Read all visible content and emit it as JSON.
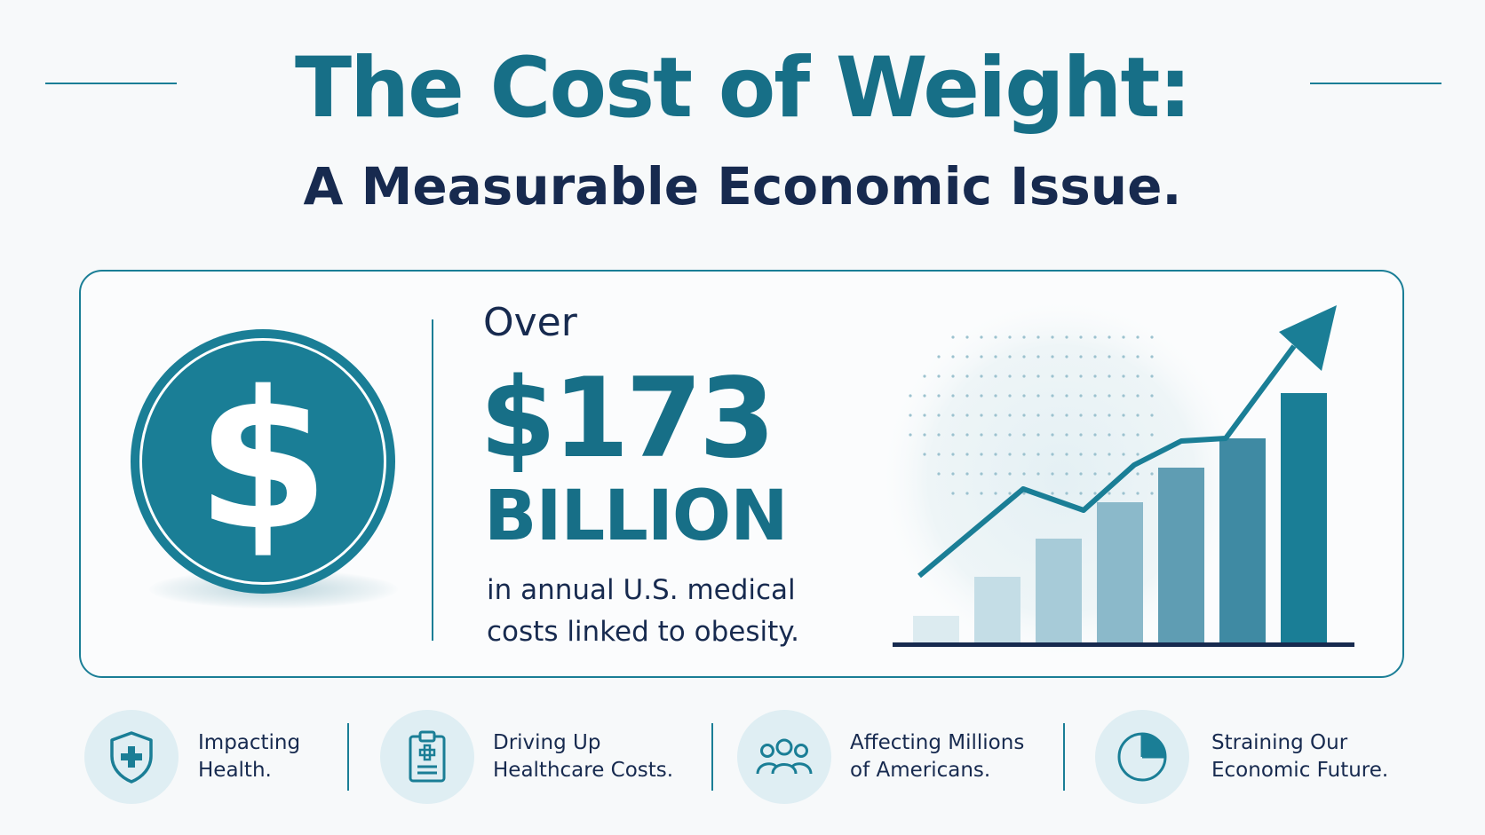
{
  "header": {
    "title": "The Cost of Weight:",
    "subtitle": "A Measurable Economic Issue."
  },
  "stat": {
    "prefix": "Over",
    "amount": "$173",
    "unit": "BILLION",
    "description": "in annual U.S. medical costs linked to obesity."
  },
  "icons": {
    "coin": "dollar-coin-icon",
    "chart": "rising-bar-chart-icon",
    "dollar_symbol": "$"
  },
  "footer": {
    "items": [
      {
        "icon": "shield-plus-icon",
        "label": "Impacting\nHealth."
      },
      {
        "icon": "clipboard-medical-icon",
        "label": "Driving Up\nHealthcare Costs."
      },
      {
        "icon": "people-group-icon",
        "label": "Affecting Millions\nof Americans."
      },
      {
        "icon": "pie-chart-icon",
        "label": "Straining Our\nEconomic Future."
      }
    ]
  },
  "colors": {
    "primary": "#1a7e96",
    "title_teal": "#176f87",
    "navy": "#172a4f",
    "icon_bg": "#dfeef3",
    "background": "#f7f9fa"
  }
}
